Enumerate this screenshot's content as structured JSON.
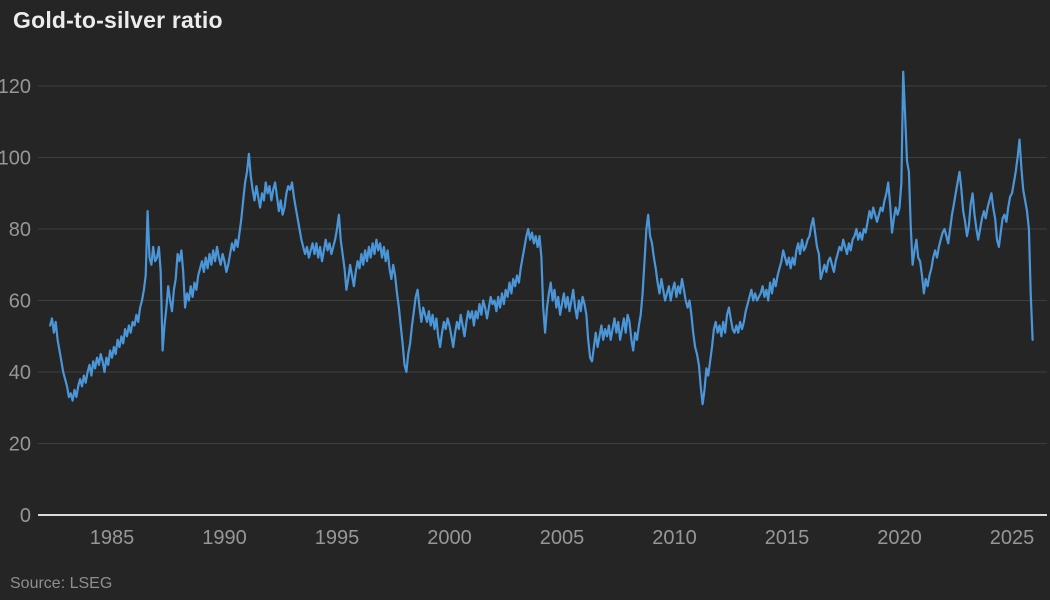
{
  "title": "Gold-to-silver ratio",
  "source": "Source: LSEG",
  "colors": {
    "background": "#252525",
    "title_text": "#ececec",
    "tick_label": "#979797",
    "gridline": "#3e3e3e",
    "zero_axis": "#d9d9d9",
    "line": "#4a96d8",
    "source_text": "#8f8f8f"
  },
  "chart_data": {
    "type": "line",
    "title": "Gold-to-silver ratio",
    "series_name": "Gold-to-silver ratio",
    "xlabel": "",
    "ylabel": "",
    "grid": true,
    "legend": "none",
    "x_ticks": [
      1985,
      1990,
      1995,
      2000,
      2005,
      2010,
      2015,
      2020,
      2025
    ],
    "y_ticks": [
      0,
      20,
      40,
      60,
      80,
      100,
      120
    ],
    "xlim": [
      1982.2,
      2026.3
    ],
    "ylim": [
      0,
      125
    ],
    "x_start_year": 1982.25,
    "x_step_years": 0.0833333,
    "values": [
      53,
      55,
      51,
      54,
      49,
      46,
      43,
      40,
      38,
      36,
      33,
      34,
      32,
      35,
      33,
      36,
      38,
      36,
      39,
      37,
      40,
      42,
      39,
      43,
      41,
      44,
      42,
      45,
      43,
      40,
      44,
      42,
      46,
      44,
      47,
      45,
      49,
      47,
      50,
      48,
      52,
      50,
      53,
      51,
      54,
      53,
      56,
      54,
      58,
      60,
      63,
      67,
      85,
      72,
      70,
      75,
      71,
      72,
      75,
      68,
      46,
      53,
      58,
      64,
      60,
      57,
      63,
      66,
      73,
      71,
      74,
      68,
      58,
      62,
      60,
      64,
      61,
      65,
      63,
      67,
      69,
      71,
      68,
      72,
      69,
      73,
      70,
      74,
      71,
      75,
      72,
      70,
      73,
      71,
      68,
      70,
      73,
      76,
      74,
      77,
      75,
      79,
      83,
      88,
      93,
      96,
      101,
      95,
      91,
      88,
      92,
      89,
      86,
      90,
      88,
      93,
      90,
      92,
      88,
      91,
      93,
      89,
      85,
      88,
      84,
      86,
      90,
      92,
      91,
      93,
      89,
      86,
      83,
      80,
      77,
      75,
      73,
      75,
      72,
      74,
      76,
      73,
      76,
      72,
      75,
      71,
      74,
      77,
      74,
      76,
      73,
      75,
      77,
      80,
      84,
      77,
      73,
      69,
      63,
      66,
      70,
      67,
      64,
      68,
      71,
      69,
      73,
      70,
      74,
      71,
      75,
      72,
      76,
      73,
      77,
      74,
      76,
      72,
      75,
      71,
      74,
      69,
      66,
      70,
      67,
      62,
      58,
      53,
      48,
      42,
      40,
      45,
      48,
      53,
      57,
      61,
      63,
      58,
      54,
      58,
      56,
      54,
      57,
      53,
      56,
      52,
      55,
      50,
      47,
      51,
      54,
      52,
      55,
      53,
      50,
      47,
      51,
      54,
      52,
      56,
      53,
      50,
      54,
      57,
      55,
      57,
      53,
      57,
      55,
      59,
      56,
      60,
      58,
      55,
      58,
      61,
      59,
      60,
      57,
      61,
      58,
      62,
      59,
      63,
      61,
      65,
      62,
      66,
      64,
      67,
      65,
      69,
      72,
      75,
      78,
      80,
      77,
      79,
      76,
      78,
      75,
      78,
      72,
      58,
      51,
      58,
      62,
      65,
      60,
      63,
      58,
      61,
      56,
      59,
      62,
      58,
      61,
      57,
      60,
      63,
      58,
      55,
      60,
      57,
      61,
      59,
      56,
      49,
      44,
      43,
      47,
      51,
      47,
      50,
      53,
      49,
      52,
      50,
      53,
      49,
      52,
      55,
      51,
      54,
      49,
      52,
      55,
      51,
      56,
      54,
      49,
      46,
      51,
      49,
      53,
      56,
      62,
      71,
      80,
      84,
      78,
      76,
      72,
      69,
      65,
      62,
      66,
      63,
      60,
      62,
      64,
      60,
      63,
      65,
      61,
      64,
      62,
      66,
      63,
      60,
      58,
      60,
      56,
      51,
      47,
      45,
      42,
      36,
      31,
      35,
      41,
      39,
      43,
      47,
      52,
      54,
      51,
      53,
      50,
      54,
      51,
      56,
      58,
      55,
      52,
      51,
      53,
      51,
      54,
      52,
      54,
      57,
      59,
      61,
      63,
      60,
      62,
      60,
      61,
      62,
      64,
      61,
      63,
      60,
      65,
      62,
      66,
      64,
      67,
      69,
      71,
      74,
      72,
      70,
      72,
      69,
      72,
      70,
      74,
      76,
      73,
      77,
      74,
      75,
      77,
      78,
      81,
      83,
      79,
      75,
      73,
      66,
      68,
      70,
      68,
      71,
      72,
      70,
      68,
      71,
      73,
      75,
      74,
      77,
      75,
      73,
      76,
      74,
      77,
      78,
      80,
      77,
      79,
      77,
      80,
      79,
      82,
      85,
      83,
      86,
      84,
      82,
      84,
      86,
      85,
      88,
      90,
      93,
      87,
      79,
      83,
      86,
      84,
      86,
      93,
      124,
      112,
      99,
      96,
      81,
      70,
      74,
      77,
      72,
      71,
      67,
      62,
      66,
      64,
      67,
      69,
      72,
      74,
      72,
      75,
      77,
      79,
      80,
      78,
      76,
      80,
      84,
      87,
      90,
      93,
      96,
      91,
      85,
      82,
      78,
      81,
      87,
      90,
      84,
      80,
      77,
      80,
      83,
      85,
      83,
      86,
      88,
      90,
      86,
      83,
      77,
      75,
      79,
      83,
      84,
      82,
      86,
      89,
      90,
      93,
      96,
      100,
      105,
      97,
      91,
      88,
      85,
      80,
      62,
      49
    ]
  }
}
